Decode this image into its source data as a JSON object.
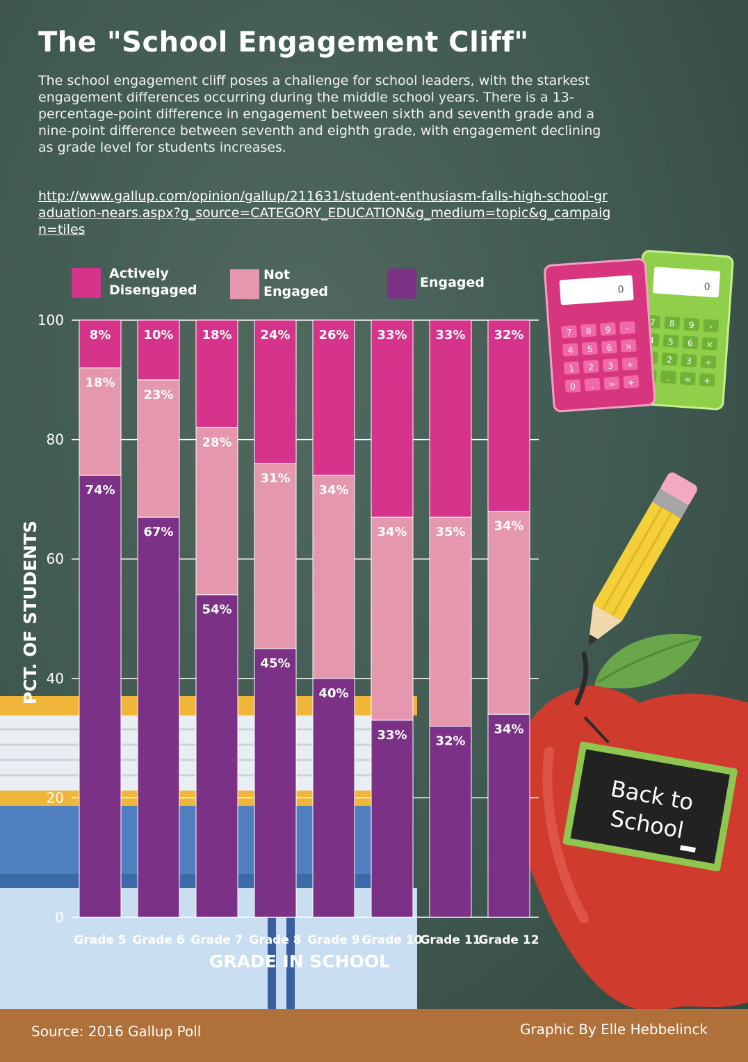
{
  "title": "The \"School Engagement Cliff\"",
  "description": "The school engagement cliff poses a challenge for school leaders, with the starkest engagement differences occurring during the middle school years. There is a 13-percentage-point difference in engagement between sixth and seventh grade and a nine-point difference between seventh and eighth grade, with engagement declining as grade level for students increases.",
  "source_url": "http://www.gallup.com/opinion/gallup/211631/student-enthusiasm-falls-high-school-graduation-nears.aspx?g_source=CATEGORY_EDUCATION&g_medium=topic&g_campaign=tiles",
  "legend": {
    "actively_disengaged": "Actively Disengaged",
    "not_engaged": "Not Engaged",
    "engaged": "Engaged"
  },
  "colors": {
    "actively_disengaged": "#d6338b",
    "not_engaged": "#e497ad",
    "engaged": "#7a3186"
  },
  "illustration": {
    "chalkboard_text": "Back to School",
    "calculator_display": "0",
    "calculator_keys": [
      "7",
      "8",
      "9",
      "-",
      "4",
      "5",
      "6",
      "×",
      "1",
      "2",
      "3",
      "÷",
      "0",
      ".",
      "=",
      "+"
    ]
  },
  "chart_data": {
    "type": "bar",
    "stacked": true,
    "categories": [
      "Grade 5",
      "Grade 6",
      "Grade 7",
      "Grade 8",
      "Grade 9",
      "Grade 10",
      "Grade 11",
      "Grade 12"
    ],
    "series": [
      {
        "name": "Engaged",
        "values": [
          74,
          67,
          54,
          45,
          40,
          33,
          32,
          34
        ],
        "labels": [
          "74%",
          "67%",
          "54%",
          "45%",
          "40%",
          "33%",
          "32%",
          "34%"
        ]
      },
      {
        "name": "Not Engaged",
        "values": [
          18,
          23,
          28,
          31,
          34,
          34,
          35,
          34
        ],
        "labels": [
          "18%",
          "23%",
          "28%",
          "31%",
          "34%",
          "34%",
          "35%",
          "34%"
        ]
      },
      {
        "name": "Actively Disengaged",
        "values": [
          8,
          10,
          18,
          24,
          26,
          33,
          33,
          32
        ],
        "labels": [
          "8%",
          "10%",
          "18%",
          "24%",
          "26%",
          "33%",
          "33%",
          "32%"
        ]
      }
    ],
    "xlabel": "GRADE IN SCHOOL",
    "ylabel": "PCT. OF STUDENTS",
    "ylim": [
      0,
      100
    ],
    "yticks": [
      "0",
      "20",
      "40",
      "60",
      "80",
      "100"
    ],
    "grid": true
  },
  "source": "Source: 2016 Gallup Poll",
  "credit": "Graphic By Elle Hebbelinck"
}
